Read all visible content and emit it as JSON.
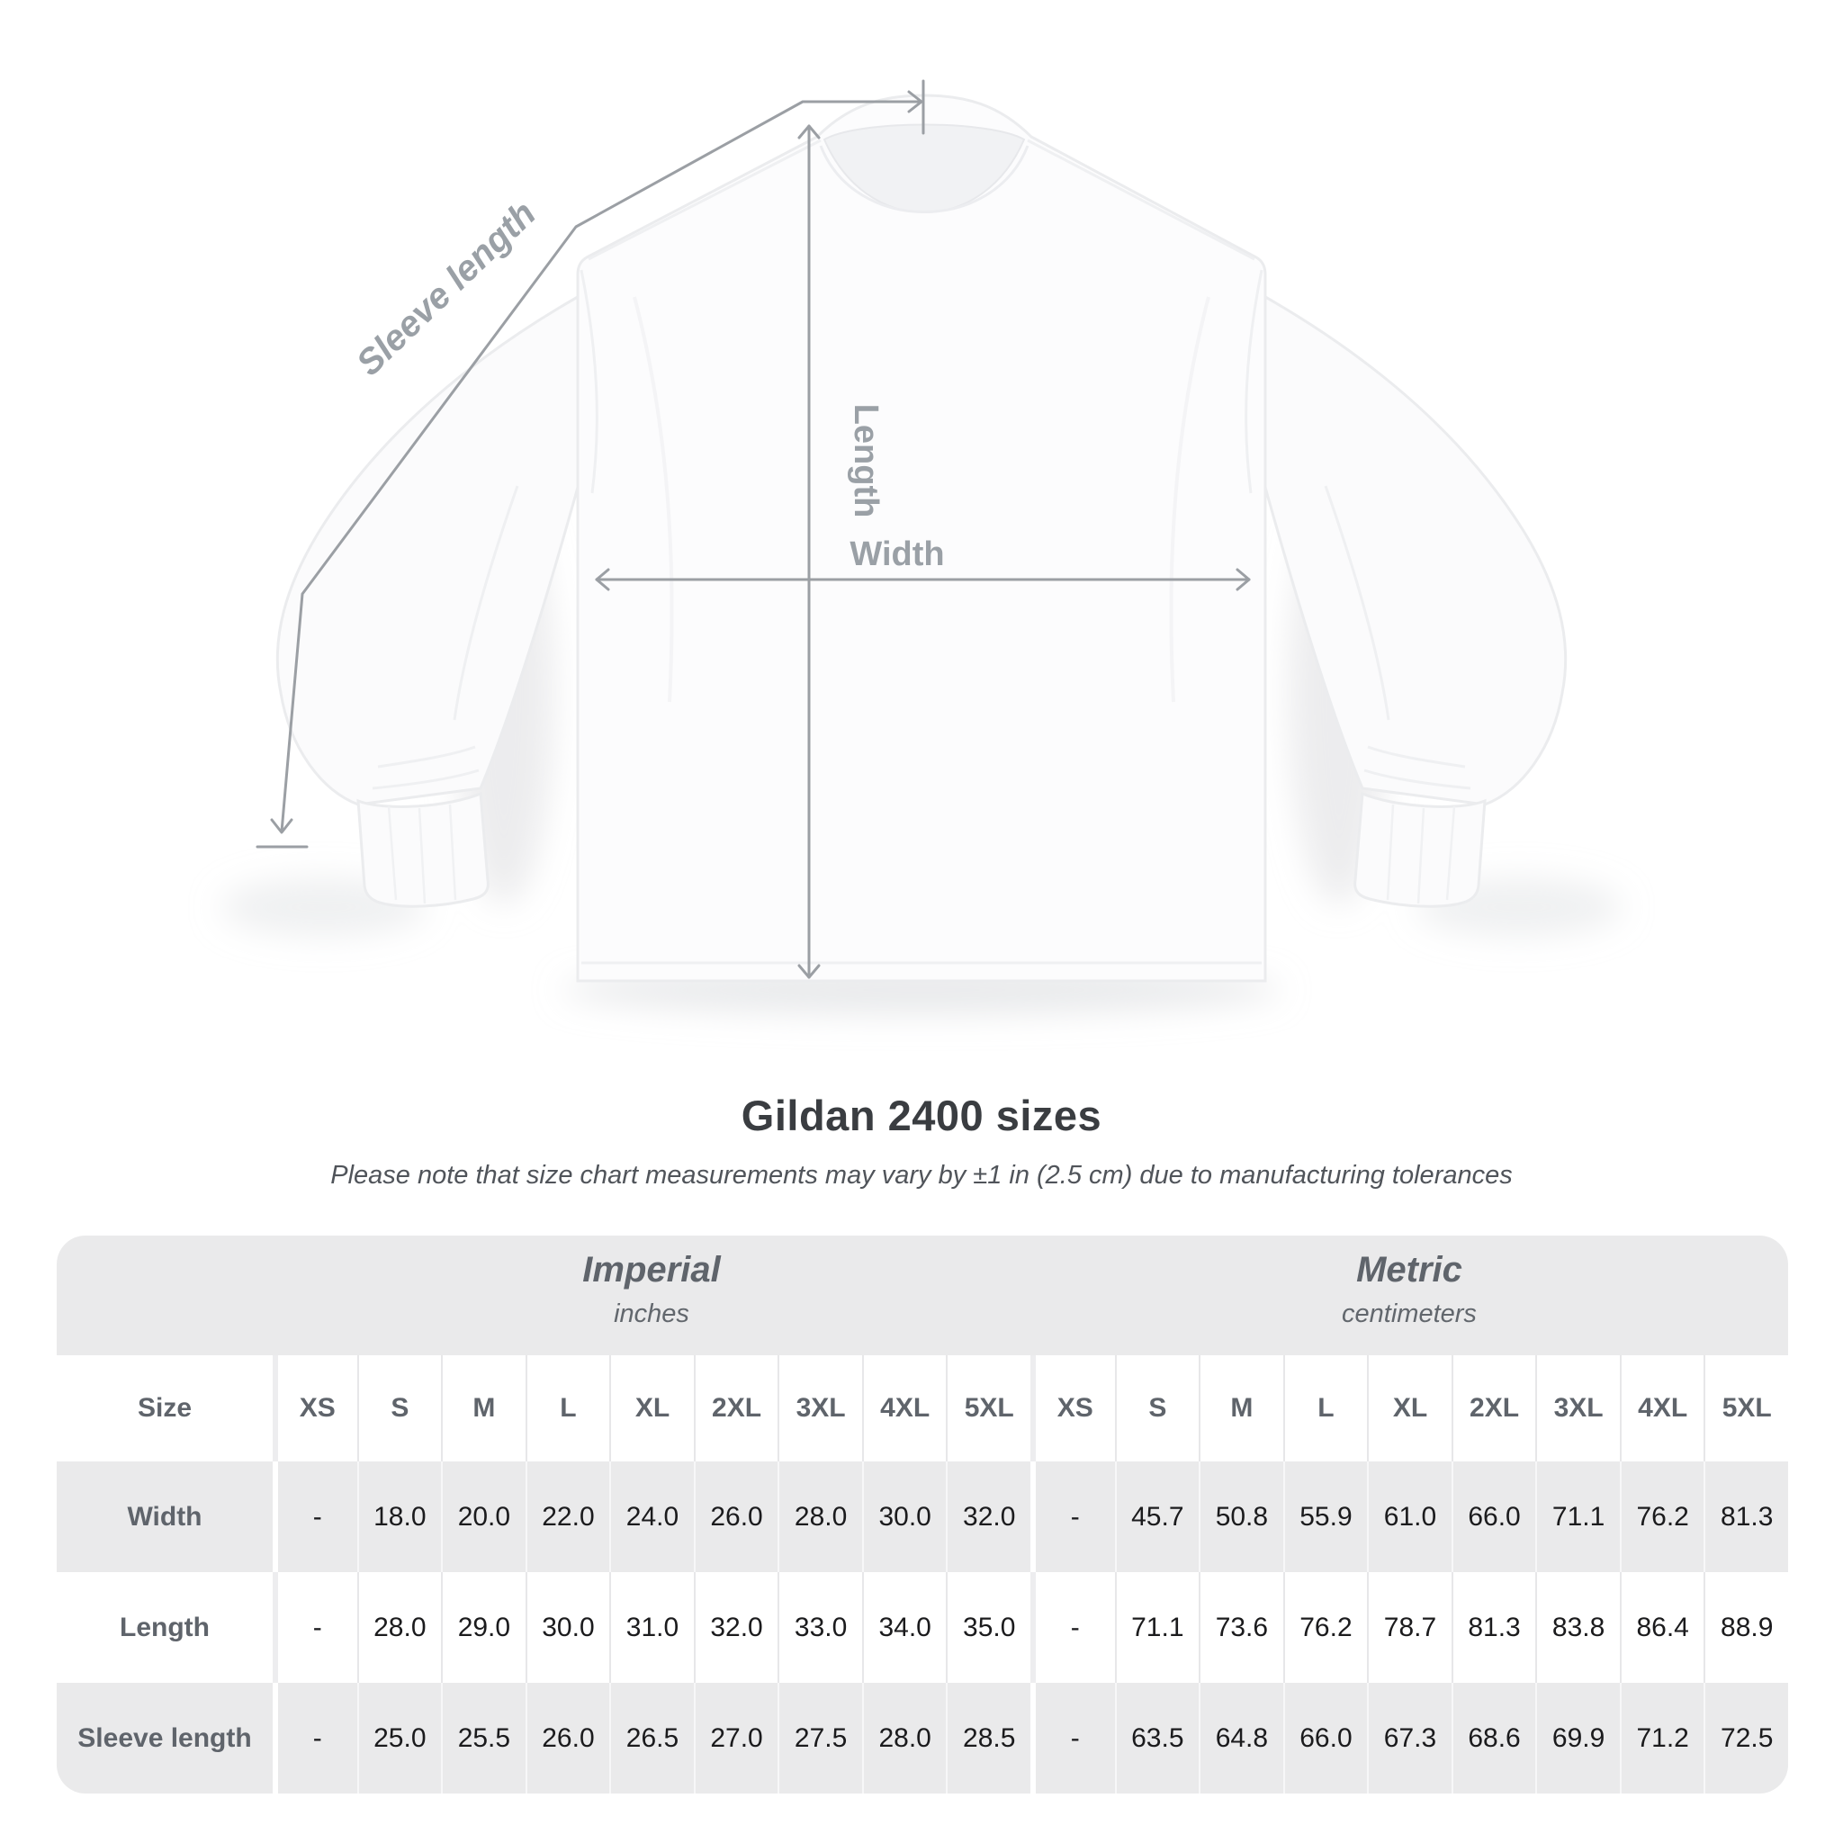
{
  "title": "Gildan 2400 sizes",
  "subtitle": "Please note that size chart measurements may vary by ±1 in (2.5 cm) due to manufacturing tolerances",
  "diagram": {
    "labels": {
      "sleeve_length": "Sleeve length",
      "length": "Length",
      "width": "Width"
    },
    "colors": {
      "measure_line": "#9b9fa4",
      "measure_label": "#9aa0a6",
      "shirt_fill": "#fbfbfc",
      "shirt_outline": "#ebecee"
    }
  },
  "table_colors": {
    "band_gray": "#eaeaeb",
    "row_gray": "#eaeaeb",
    "row_white": "#ffffff",
    "header_text": "#5f646b",
    "value_text": "#1b1b1d"
  },
  "chart_data": {
    "type": "table",
    "title": "Gildan 2400 sizes",
    "size_header": "Size",
    "unit_groups": [
      {
        "label": "Imperial",
        "sublabel": "inches"
      },
      {
        "label": "Metric",
        "sublabel": "centimeters"
      }
    ],
    "columns": [
      "XS",
      "S",
      "M",
      "L",
      "XL",
      "2XL",
      "3XL",
      "4XL",
      "5XL",
      "XS",
      "S",
      "M",
      "L",
      "XL",
      "2XL",
      "3XL",
      "4XL",
      "5XL"
    ],
    "rows": [
      {
        "label": "Width",
        "imperial": [
          "-",
          "18.0",
          "20.0",
          "22.0",
          "24.0",
          "26.0",
          "28.0",
          "30.0",
          "32.0"
        ],
        "metric": [
          "-",
          "45.7",
          "50.8",
          "55.9",
          "61.0",
          "66.0",
          "71.1",
          "76.2",
          "81.3"
        ]
      },
      {
        "label": "Length",
        "imperial": [
          "-",
          "28.0",
          "29.0",
          "30.0",
          "31.0",
          "32.0",
          "33.0",
          "34.0",
          "35.0"
        ],
        "metric": [
          "-",
          "71.1",
          "73.6",
          "76.2",
          "78.7",
          "81.3",
          "83.8",
          "86.4",
          "88.9"
        ]
      },
      {
        "label": "Sleeve length",
        "imperial": [
          "-",
          "25.0",
          "25.5",
          "26.0",
          "26.5",
          "27.0",
          "27.5",
          "28.0",
          "28.5"
        ],
        "metric": [
          "-",
          "63.5",
          "64.8",
          "66.0",
          "67.3",
          "68.6",
          "69.9",
          "71.2",
          "72.5"
        ]
      }
    ]
  }
}
